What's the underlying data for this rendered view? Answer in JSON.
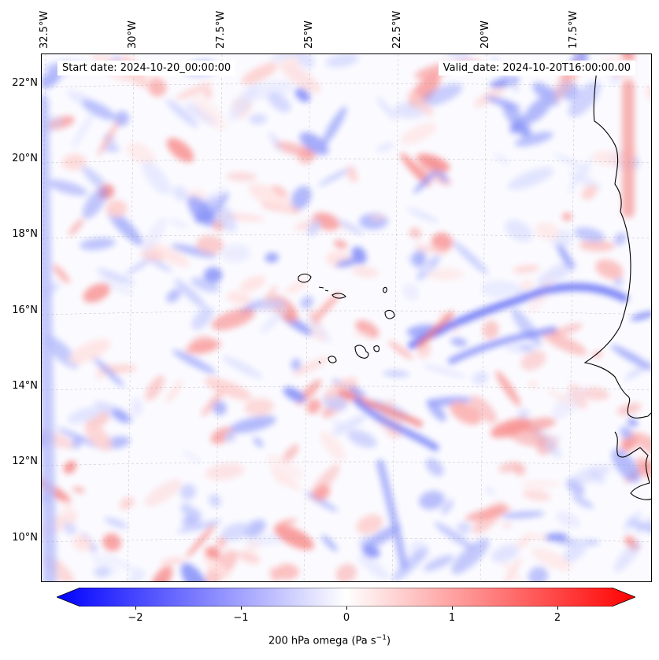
{
  "header": {
    "start_date": "Start date: 2024-10-20_00:00:00",
    "valid_date": "Valid_date: 2024-10-20T16:00:00.00"
  },
  "axes": {
    "lon_labels": [
      "32.5°W",
      "30°W",
      "27.5°W",
      "25°W",
      "22.5°W",
      "20°W",
      "17.5°W"
    ],
    "lat_labels": [
      "22°N",
      "20°N",
      "18°N",
      "16°N",
      "14°N",
      "12°N",
      "10°N"
    ]
  },
  "colorbar": {
    "ticks": [
      "−2",
      "−1",
      "0",
      "1",
      "2"
    ],
    "tick_values": [
      -2,
      -1,
      0,
      1,
      2
    ],
    "range": [
      -2.75,
      2.75
    ],
    "label": "200 hPa omega (Pa s",
    "label_sup": "−1",
    "label_end": ")",
    "colors": {
      "min": "#0000ff",
      "mid": "#ffffff",
      "max": "#ff0000"
    }
  },
  "map": {
    "field": "200 hPa omega",
    "colormap": "bwr",
    "features": [
      "coastline",
      "cape-verde-islands",
      "gridlines"
    ],
    "line_color": "#000000"
  }
}
